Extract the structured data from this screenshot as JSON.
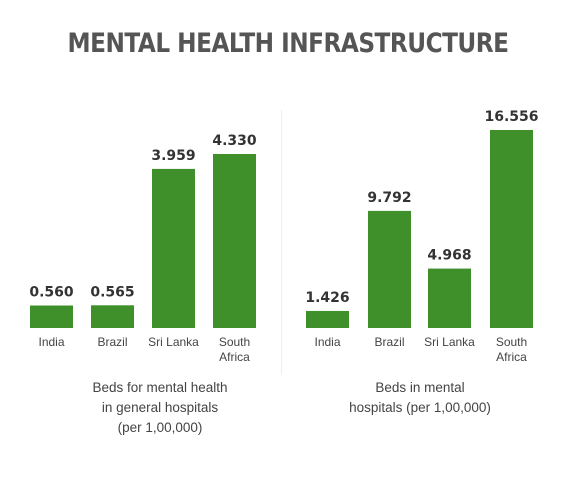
{
  "title": "MENTAL HEALTH INFRASTRUCTURE",
  "chart_data": [
    {
      "type": "bar",
      "title": "Beds for mental health in general hospitals (per 1,00,000)",
      "caption_lines": [
        "Beds for mental health",
        "in general hospitals",
        "(per 1,00,000)"
      ],
      "categories": [
        [
          "India"
        ],
        [
          "Brazil"
        ],
        [
          "Sri Lanka"
        ],
        [
          "South",
          "Africa"
        ]
      ],
      "values": [
        0.56,
        0.565,
        3.959,
        4.33
      ],
      "value_labels": [
        "0.560",
        "0.565",
        "3.959",
        "4.330"
      ],
      "bar_color": "#3f8f2b",
      "grid": false
    },
    {
      "type": "bar",
      "title": "Beds in mental hospitals (per 1,00,000)",
      "caption_lines": [
        "Beds in mental",
        "hospitals (per 1,00,000)"
      ],
      "categories": [
        [
          "India"
        ],
        [
          "Brazil"
        ],
        [
          "Sri Lanka"
        ],
        [
          "South",
          "Africa"
        ]
      ],
      "values": [
        1.426,
        9.792,
        4.968,
        16.556
      ],
      "value_labels": [
        "1.426",
        "9.792",
        "4.968",
        "16.556"
      ],
      "bar_color": "#3f8f2b",
      "grid": false
    }
  ]
}
